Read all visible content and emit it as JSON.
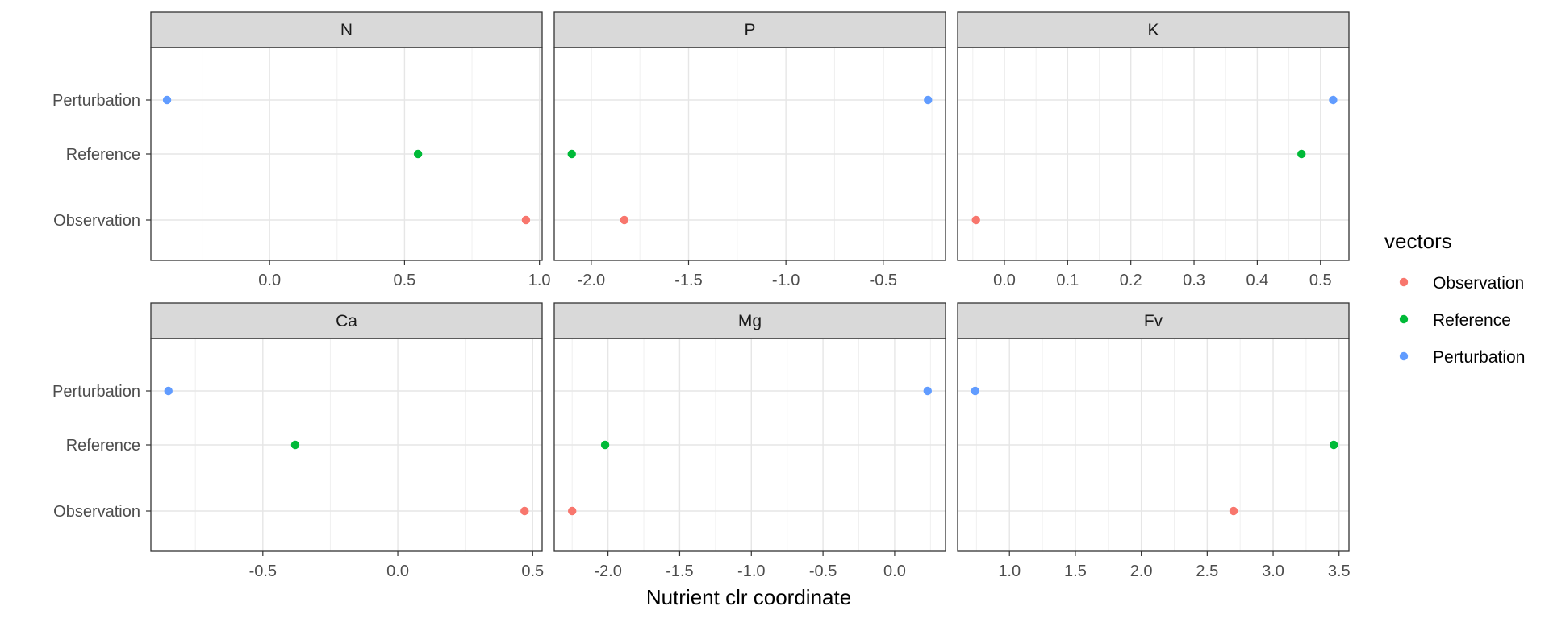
{
  "chart_data": {
    "type": "scatter",
    "xlabel": "Nutrient clr coordinate",
    "ylabel": "",
    "categories": [
      "Observation",
      "Reference",
      "Perturbation"
    ],
    "legend": {
      "title": "vectors",
      "position": "right",
      "entries": [
        {
          "name": "Observation",
          "color": "#F8766D"
        },
        {
          "name": "Reference",
          "color": "#00BA38"
        },
        {
          "name": "Perturbation",
          "color": "#619CFF"
        }
      ]
    },
    "facets": [
      {
        "label": "N",
        "xlim": [
          -0.44,
          1.01
        ],
        "ticks": [
          0.0,
          0.5,
          1.0
        ],
        "tick_labels": [
          "0.0",
          "0.5",
          "1.0"
        ],
        "points": [
          {
            "series": "Observation",
            "x": 0.95
          },
          {
            "series": "Reference",
            "x": 0.55
          },
          {
            "series": "Perturbation",
            "x": -0.38
          }
        ]
      },
      {
        "label": "P",
        "xlim": [
          -2.19,
          -0.18
        ],
        "ticks": [
          -2.0,
          -1.5,
          -1.0,
          -0.5
        ],
        "tick_labels": [
          "-2.0",
          "-1.5",
          "-1.0",
          "-0.5"
        ],
        "points": [
          {
            "series": "Observation",
            "x": -1.83
          },
          {
            "series": "Reference",
            "x": -2.1
          },
          {
            "series": "Perturbation",
            "x": -0.27
          }
        ]
      },
      {
        "label": "K",
        "xlim": [
          -0.074,
          0.545
        ],
        "ticks": [
          0.0,
          0.1,
          0.2,
          0.3,
          0.4,
          0.5
        ],
        "tick_labels": [
          "0.0",
          "0.1",
          "0.2",
          "0.3",
          "0.4",
          "0.5"
        ],
        "points": [
          {
            "series": "Observation",
            "x": -0.045
          },
          {
            "series": "Reference",
            "x": 0.47
          },
          {
            "series": "Perturbation",
            "x": 0.52
          }
        ]
      },
      {
        "label": "Ca",
        "xlim": [
          -0.915,
          0.535
        ],
        "ticks": [
          -0.5,
          0.0,
          0.5
        ],
        "tick_labels": [
          "-0.5",
          "0.0",
          "0.5"
        ],
        "points": [
          {
            "series": "Observation",
            "x": 0.47
          },
          {
            "series": "Reference",
            "x": -0.38
          },
          {
            "series": "Perturbation",
            "x": -0.85
          }
        ]
      },
      {
        "label": "Mg",
        "xlim": [
          -2.375,
          0.355
        ],
        "ticks": [
          -2.0,
          -1.5,
          -1.0,
          -0.5,
          0.0
        ],
        "tick_labels": [
          "-2.0",
          "-1.5",
          "-1.0",
          "-0.5",
          "0.0"
        ],
        "points": [
          {
            "series": "Observation",
            "x": -2.25
          },
          {
            "series": "Reference",
            "x": -2.02
          },
          {
            "series": "Perturbation",
            "x": 0.23
          }
        ]
      },
      {
        "label": "Fv",
        "xlim": [
          0.607,
          3.575
        ],
        "ticks": [
          1.0,
          1.5,
          2.0,
          2.5,
          3.0,
          3.5
        ],
        "tick_labels": [
          "1.0",
          "1.5",
          "2.0",
          "2.5",
          "3.0",
          "3.5"
        ],
        "points": [
          {
            "series": "Observation",
            "x": 2.7
          },
          {
            "series": "Reference",
            "x": 3.46
          },
          {
            "series": "Perturbation",
            "x": 0.74
          }
        ]
      }
    ]
  }
}
